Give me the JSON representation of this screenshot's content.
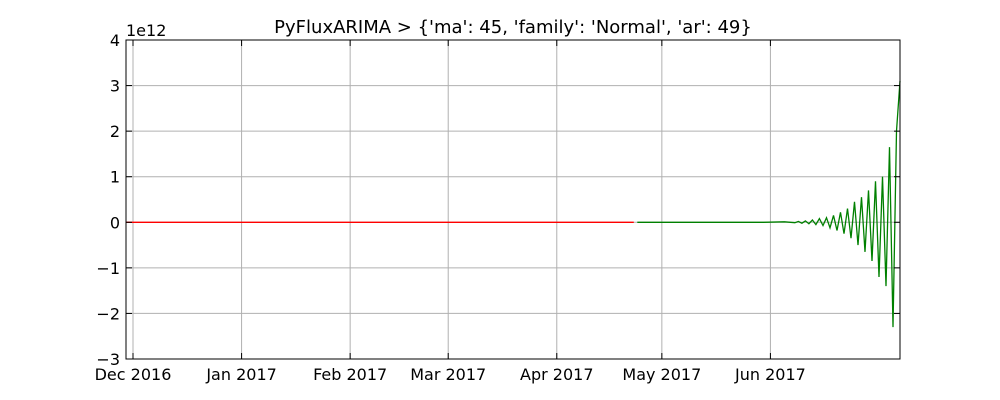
{
  "chart_data": {
    "type": "line",
    "title": "PyFluxARIMA > {'ma': 45, 'family': 'Normal', 'ar': 49}",
    "xlabel": "",
    "ylabel": "",
    "y_offset_label": "1e12",
    "xlim": [
      "2016-11-29",
      "2017-07-08"
    ],
    "ylim": [
      -3,
      4
    ],
    "y_ticks": [
      -3,
      -2,
      -1,
      0,
      1,
      2,
      3,
      4
    ],
    "y_tick_labels": [
      "−3",
      "−2",
      "−1",
      "0",
      "1",
      "2",
      "3",
      "4"
    ],
    "x_ticks": [
      {
        "date": "2016-12-01",
        "label": "Dec 2016"
      },
      {
        "date": "2017-01-01",
        "label": "Jan 2017"
      },
      {
        "date": "2017-02-01",
        "label": "Feb 2017"
      },
      {
        "date": "2017-03-01",
        "label": "Mar 2017"
      },
      {
        "date": "2017-04-01",
        "label": "Apr 2017"
      },
      {
        "date": "2017-05-01",
        "label": "May 2017"
      },
      {
        "date": "2017-06-01",
        "label": "Jun 2017"
      }
    ],
    "grid": true,
    "series": [
      {
        "color": "#ff0000",
        "x": [
          "2016-11-29",
          "2017-04-23"
        ],
        "y": [
          0,
          0
        ]
      },
      {
        "color": "#008000",
        "x": [
          "2017-04-24",
          "2017-05-10",
          "2017-05-20",
          "2017-05-30",
          "2017-06-05",
          "2017-06-08",
          "2017-06-09",
          "2017-06-10",
          "2017-06-11",
          "2017-06-12",
          "2017-06-13",
          "2017-06-14",
          "2017-06-15",
          "2017-06-16",
          "2017-06-17",
          "2017-06-18",
          "2017-06-19",
          "2017-06-20",
          "2017-06-21",
          "2017-06-22",
          "2017-06-23",
          "2017-06-24",
          "2017-06-25",
          "2017-06-26",
          "2017-06-27",
          "2017-06-28",
          "2017-06-29",
          "2017-06-30",
          "2017-07-01",
          "2017-07-02",
          "2017-07-03",
          "2017-07-04",
          "2017-07-05",
          "2017-07-06",
          "2017-07-07",
          "2017-07-08"
        ],
        "y": [
          0,
          0,
          0,
          0,
          0.01,
          -0.01,
          0.02,
          -0.02,
          0.03,
          -0.03,
          0.05,
          -0.05,
          0.08,
          -0.07,
          0.1,
          -0.12,
          0.15,
          -0.18,
          0.22,
          -0.25,
          0.3,
          -0.35,
          0.45,
          -0.5,
          0.55,
          -0.65,
          0.7,
          -0.85,
          0.9,
          -1.2,
          1.0,
          -1.4,
          1.65,
          -2.3,
          2.0,
          3.1
        ]
      }
    ]
  }
}
